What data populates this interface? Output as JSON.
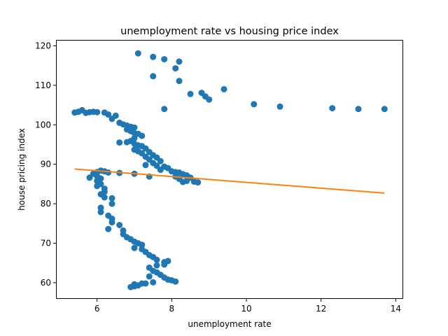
{
  "chart_data": {
    "type": "scatter",
    "title": "unemployment rate vs housing price index",
    "xlabel": "unemployment rate",
    "ylabel": "house pricing index",
    "xlim": [
      4.9,
      14.2
    ],
    "ylim": [
      55.9,
      121.5
    ],
    "xticks": [
      6,
      8,
      10,
      12,
      14
    ],
    "yticks": [
      60,
      70,
      80,
      90,
      100,
      110,
      120
    ],
    "grid": false,
    "colors": {
      "points": "#1f77b4",
      "fit": "#ff7f0e"
    },
    "series": [
      {
        "type": "scatter",
        "points": [
          [
            7.1,
            118.1
          ],
          [
            7.5,
            117.2
          ],
          [
            7.8,
            116.6
          ],
          [
            8.2,
            116.0
          ],
          [
            8.1,
            114.3
          ],
          [
            7.5,
            112.3
          ],
          [
            8.2,
            111.1
          ],
          [
            9.4,
            109.0
          ],
          [
            8.8,
            108.1
          ],
          [
            8.5,
            107.8
          ],
          [
            8.9,
            107.2
          ],
          [
            9.0,
            106.4
          ],
          [
            10.2,
            105.2
          ],
          [
            10.9,
            104.6
          ],
          [
            12.3,
            104.2
          ],
          [
            13.0,
            104.0
          ],
          [
            13.7,
            104.0
          ],
          [
            7.8,
            104.0
          ],
          [
            5.4,
            103.1
          ],
          [
            5.5,
            103.3
          ],
          [
            5.6,
            103.7
          ],
          [
            5.7,
            103.0
          ],
          [
            5.8,
            103.2
          ],
          [
            5.9,
            103.3
          ],
          [
            6.0,
            103.2
          ],
          [
            6.2,
            103.1
          ],
          [
            6.3,
            102.6
          ],
          [
            6.5,
            102.3
          ],
          [
            6.4,
            101.5
          ],
          [
            6.6,
            100.5
          ],
          [
            6.7,
            100.1
          ],
          [
            6.8,
            99.8
          ],
          [
            6.9,
            99.5
          ],
          [
            7.0,
            99.3
          ],
          [
            6.8,
            98.8
          ],
          [
            6.9,
            98.4
          ],
          [
            7.0,
            97.9
          ],
          [
            7.1,
            97.7
          ],
          [
            7.2,
            97.2
          ],
          [
            7.0,
            96.6
          ],
          [
            6.6,
            95.5
          ],
          [
            6.8,
            95.6
          ],
          [
            6.9,
            95.9
          ],
          [
            7.0,
            95.2
          ],
          [
            7.1,
            94.8
          ],
          [
            7.2,
            94.6
          ],
          [
            7.3,
            94.0
          ],
          [
            7.0,
            93.7
          ],
          [
            7.1,
            93.3
          ],
          [
            7.4,
            93.1
          ],
          [
            7.2,
            92.8
          ],
          [
            7.5,
            92.3
          ],
          [
            7.3,
            91.9
          ],
          [
            7.6,
            91.7
          ],
          [
            7.4,
            91.2
          ],
          [
            7.7,
            90.8
          ],
          [
            7.5,
            90.3
          ],
          [
            7.3,
            89.8
          ],
          [
            7.6,
            89.6
          ],
          [
            7.8,
            89.4
          ],
          [
            7.9,
            89.0
          ],
          [
            7.7,
            88.6
          ],
          [
            8.0,
            88.2
          ],
          [
            8.1,
            88.0
          ],
          [
            8.2,
            87.9
          ],
          [
            8.3,
            87.5
          ],
          [
            8.4,
            87.2
          ],
          [
            8.1,
            86.9
          ],
          [
            8.5,
            86.6
          ],
          [
            8.2,
            86.3
          ],
          [
            8.4,
            85.8
          ],
          [
            8.6,
            85.6
          ],
          [
            8.7,
            85.4
          ],
          [
            8.3,
            85.5
          ],
          [
            7.4,
            86.9
          ],
          [
            7.0,
            87.6
          ],
          [
            6.6,
            87.8
          ],
          [
            6.2,
            88.2
          ],
          [
            6.1,
            88.4
          ],
          [
            6.3,
            87.9
          ],
          [
            6.0,
            88.0
          ],
          [
            5.9,
            87.6
          ],
          [
            6.0,
            87.0
          ],
          [
            5.8,
            86.6
          ],
          [
            6.1,
            86.4
          ],
          [
            6.0,
            85.8
          ],
          [
            6.1,
            85.0
          ],
          [
            6.0,
            84.5
          ],
          [
            6.2,
            83.8
          ],
          [
            6.2,
            83.0
          ],
          [
            6.1,
            82.4
          ],
          [
            6.2,
            81.6
          ],
          [
            6.4,
            81.4
          ],
          [
            6.4,
            80.0
          ],
          [
            6.1,
            79.0
          ],
          [
            6.1,
            77.9
          ],
          [
            6.3,
            77.0
          ],
          [
            6.4,
            76.2
          ],
          [
            6.4,
            75.3
          ],
          [
            6.6,
            74.6
          ],
          [
            6.3,
            73.6
          ],
          [
            6.7,
            73.2
          ],
          [
            6.7,
            72.3
          ],
          [
            6.8,
            71.5
          ],
          [
            6.9,
            71.0
          ],
          [
            7.0,
            70.4
          ],
          [
            7.1,
            70.0
          ],
          [
            7.2,
            69.6
          ],
          [
            7.0,
            68.8
          ],
          [
            7.2,
            68.5
          ],
          [
            7.3,
            67.8
          ],
          [
            7.4,
            67.0
          ],
          [
            7.5,
            66.5
          ],
          [
            7.6,
            65.8
          ],
          [
            7.8,
            65.2
          ],
          [
            7.9,
            65.5
          ],
          [
            7.8,
            64.6
          ],
          [
            7.6,
            64.4
          ],
          [
            7.4,
            63.8
          ],
          [
            7.5,
            63.0
          ],
          [
            7.6,
            62.6
          ],
          [
            7.7,
            62.0
          ],
          [
            7.4,
            61.6
          ],
          [
            7.8,
            61.3
          ],
          [
            7.9,
            60.8
          ],
          [
            8.0,
            60.6
          ],
          [
            8.1,
            60.3
          ],
          [
            7.5,
            60.1
          ],
          [
            7.2,
            59.8
          ],
          [
            7.0,
            59.6
          ],
          [
            6.9,
            58.9
          ],
          [
            7.0,
            59.1
          ],
          [
            7.1,
            59.3
          ],
          [
            7.3,
            59.8
          ]
        ]
      },
      {
        "type": "line",
        "points": [
          [
            5.4,
            88.8
          ],
          [
            13.7,
            82.7
          ]
        ]
      }
    ]
  }
}
